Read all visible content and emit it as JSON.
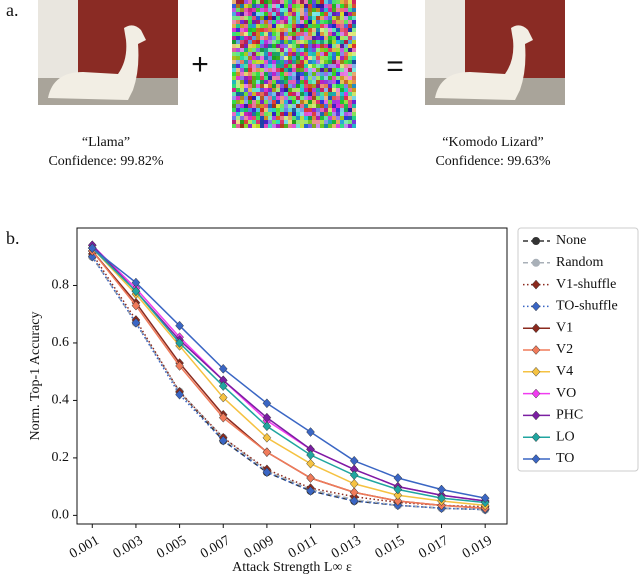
{
  "panel_a": {
    "label": "a.",
    "plus": "+",
    "equals": "=",
    "left_caption": {
      "name": "“Llama”",
      "confidence": "Confidence: 99.82%"
    },
    "right_caption": {
      "name": "“Komodo Lizard”",
      "confidence": "Confidence: 99.63%"
    }
  },
  "panel_b": {
    "label": "b."
  },
  "chart_data": {
    "type": "line",
    "xlabel": "Attack Strength L∞ ε",
    "ylabel": "Norm. Top-1 Accuracy",
    "x": [
      0.001,
      0.003,
      0.005,
      0.007,
      0.009,
      0.011,
      0.013,
      0.015,
      0.017,
      0.019
    ],
    "xlim": [
      0.0003,
      0.02
    ],
    "ylim": [
      -0.03,
      1.0
    ],
    "xticks": [
      0.001,
      0.003,
      0.005,
      0.007,
      0.009,
      0.011,
      0.013,
      0.015,
      0.017,
      0.019
    ],
    "yticks": [
      {
        "value": 0,
        "label": "0.0"
      },
      0.2,
      0.4,
      0.6,
      0.8
    ],
    "legend": "outside-right",
    "series": [
      {
        "name": "None",
        "color": "#333333",
        "dash": "dashed",
        "marker": "circle",
        "values": [
          0.9,
          0.67,
          0.43,
          0.26,
          0.15,
          0.085,
          0.05,
          0.035,
          0.025,
          0.02
        ]
      },
      {
        "name": "Random",
        "color": "#a9b0b8",
        "dash": "dashed",
        "marker": "circle",
        "values": [
          0.9,
          0.67,
          0.43,
          0.27,
          0.155,
          0.09,
          0.055,
          0.035,
          0.025,
          0.02
        ]
      },
      {
        "name": "V1-shuffle",
        "color": "#8b2a1e",
        "dash": "dotted",
        "marker": "diamond",
        "values": [
          0.91,
          0.68,
          0.43,
          0.27,
          0.16,
          0.095,
          0.065,
          0.045,
          0.035,
          0.03
        ]
      },
      {
        "name": "TO-shuffle",
        "color": "#3a66c4",
        "dash": "dotted",
        "marker": "diamond",
        "values": [
          0.9,
          0.67,
          0.42,
          0.26,
          0.15,
          0.085,
          0.05,
          0.035,
          0.025,
          0.02
        ]
      },
      {
        "name": "V1",
        "color": "#8b2a1e",
        "dash": "solid",
        "marker": "diamond",
        "values": [
          0.92,
          0.74,
          0.53,
          0.35,
          0.22,
          0.13,
          0.08,
          0.05,
          0.035,
          0.025
        ]
      },
      {
        "name": "V2",
        "color": "#f07b5a",
        "dash": "solid",
        "marker": "diamond",
        "values": [
          0.92,
          0.73,
          0.52,
          0.34,
          0.22,
          0.13,
          0.08,
          0.05,
          0.035,
          0.025
        ]
      },
      {
        "name": "V4",
        "color": "#f5c242",
        "dash": "solid",
        "marker": "diamond",
        "values": [
          0.93,
          0.77,
          0.59,
          0.41,
          0.27,
          0.18,
          0.11,
          0.07,
          0.05,
          0.035
        ]
      },
      {
        "name": "VO",
        "color": "#f03cf0",
        "dash": "solid",
        "marker": "diamond",
        "values": [
          0.94,
          0.79,
          0.62,
          0.47,
          0.33,
          0.23,
          0.16,
          0.1,
          0.07,
          0.05
        ]
      },
      {
        "name": "PHC",
        "color": "#7b1fa2",
        "dash": "solid",
        "marker": "diamond",
        "values": [
          0.94,
          0.78,
          0.61,
          0.47,
          0.34,
          0.23,
          0.16,
          0.1,
          0.07,
          0.05
        ]
      },
      {
        "name": "LO",
        "color": "#20a5a0",
        "dash": "solid",
        "marker": "diamond",
        "values": [
          0.93,
          0.78,
          0.6,
          0.45,
          0.31,
          0.21,
          0.14,
          0.09,
          0.06,
          0.045
        ]
      },
      {
        "name": "TO",
        "color": "#3a66c4",
        "dash": "solid",
        "marker": "diamond",
        "values": [
          0.93,
          0.81,
          0.66,
          0.51,
          0.39,
          0.29,
          0.19,
          0.13,
          0.09,
          0.06
        ]
      }
    ]
  }
}
